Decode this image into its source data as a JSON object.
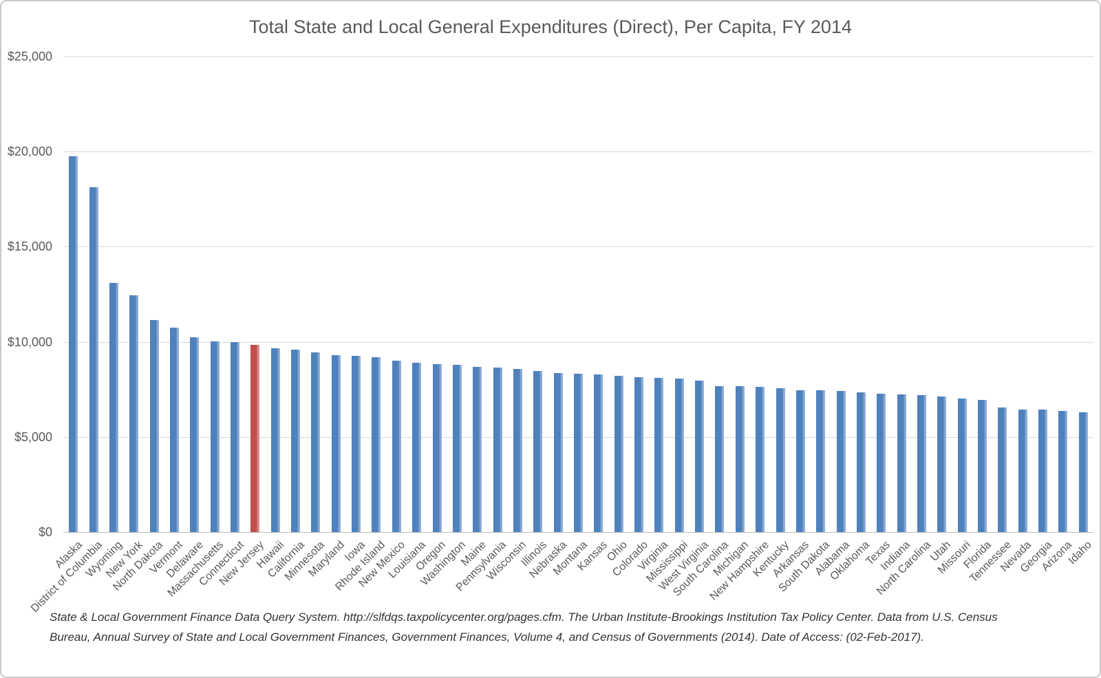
{
  "title": "Total State and Local General Expenditures (Direct), Per Capita, FY 2014",
  "footnote": [
    "State & Local Government Finance Data Query System. http://slfdqs.taxpolicycenter.org/pages.cfm. The Urban Institute-Brookings Institution Tax Policy Center. Data from U.S. Census",
    "Bureau, Annual Survey of State and Local Government Finances, Government Finances, Volume 4, and Census of Governments (2014). Date of Access: (02-Feb-2017)."
  ],
  "colors": {
    "bar_default": "#4F81BD",
    "bar_highlight": "#C0504D",
    "gridline": "#D9D9D9",
    "axis_line": "#BDBDBD",
    "text": "#595959"
  },
  "chart_data": {
    "type": "bar",
    "title": "Total State and Local General Expenditures (Direct), Per Capita, FY 2014",
    "xlabel": "",
    "ylabel": "",
    "ylim": [
      0,
      25000
    ],
    "ytick_interval": 5000,
    "grid": true,
    "legend": "none",
    "highlight_category": "New Jersey",
    "highlight_index": 9,
    "y_axis": {
      "min": 0,
      "max": 25000,
      "ticks": [
        {
          "value": 25000,
          "label": "$25,000"
        },
        {
          "value": 20000,
          "label": "$20,000"
        },
        {
          "value": 15000,
          "label": "$15,000"
        },
        {
          "value": 10000,
          "label": "$10,000"
        },
        {
          "value": 5000,
          "label": "$5,000"
        },
        {
          "value": 0,
          "label": "$0"
        }
      ]
    },
    "categories": [
      "Alaska",
      "District of Columbia",
      "Wyoming",
      "New York",
      "North Dakota",
      "Vermont",
      "Delaware",
      "Massachusetts",
      "Connecticut",
      "New Jersey",
      "Hawaii",
      "California",
      "Minnesota",
      "Maryland",
      "Iowa",
      "Rhode Island",
      "New Mexico",
      "Louisiana",
      "Oregon",
      "Washington",
      "Maine",
      "Pennsylvania",
      "Wisconsin",
      "Illinois",
      "Nebraska",
      "Montana",
      "Kansas",
      "Ohio",
      "Colorado",
      "Virginia",
      "Mississippi",
      "West Virginia",
      "South Carolina",
      "Michigan",
      "New Hampshire",
      "Kentucky",
      "Arkansas",
      "South Dakota",
      "Alabama",
      "Oklahoma",
      "Texas",
      "Indiana",
      "North Carolina",
      "Utah",
      "Missouri",
      "Florida",
      "Tennessee",
      "Nevada",
      "Georgia",
      "Arizona",
      "Idaho"
    ],
    "values": [
      19770,
      18130,
      13110,
      12450,
      11130,
      10750,
      10250,
      10030,
      9980,
      9850,
      9650,
      9580,
      9440,
      9300,
      9260,
      9200,
      9000,
      8900,
      8840,
      8780,
      8680,
      8660,
      8570,
      8470,
      8370,
      8330,
      8270,
      8220,
      8130,
      8090,
      8080,
      7970,
      7670,
      7660,
      7640,
      7560,
      7470,
      7440,
      7420,
      7360,
      7260,
      7220,
      7190,
      7120,
      7020,
      6940,
      6560,
      6450,
      6450,
      6360,
      6300
    ]
  }
}
